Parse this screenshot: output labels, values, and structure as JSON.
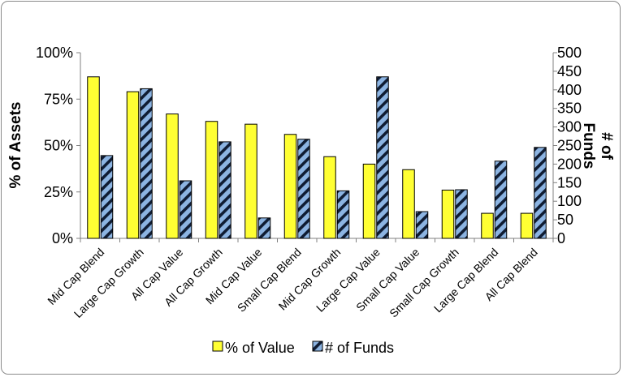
{
  "chart_data": {
    "type": "bar",
    "categories": [
      "Mid Cap Blend",
      "Large Cap Growth",
      "All Cap Value",
      "All Cap Growth",
      "Mid Cap Value",
      "Small Cap Blend",
      "Mid Cap Growth",
      "Large Cap Value",
      "Small Cap Value",
      "Small Cap Growth",
      "Large Cap Blend",
      "All Cap Blend"
    ],
    "series": [
      {
        "name": "% of Value",
        "axis": "left",
        "color": "#ffff33",
        "values": [
          87,
          79,
          67,
          63,
          61.5,
          56,
          44,
          40,
          37,
          26,
          13.5,
          13.5
        ]
      },
      {
        "name": "# of Funds",
        "axis": "right",
        "color": "#8cb4e2",
        "pattern": "diagonal-stripes",
        "values": [
          223,
          403,
          155,
          260,
          55,
          267,
          128,
          435,
          72,
          131,
          208,
          245
        ]
      }
    ],
    "y_left": {
      "label": "% of Assets",
      "ticks": [
        "0%",
        "25%",
        "50%",
        "75%",
        "100%"
      ],
      "ylim": [
        0,
        100
      ]
    },
    "y_right": {
      "label": "# of Funds",
      "ticks": [
        "0",
        "50",
        "100",
        "150",
        "200",
        "250",
        "300",
        "350",
        "400",
        "450",
        "500"
      ],
      "ylim": [
        0,
        500
      ]
    },
    "grid": false,
    "legend": "bottom"
  }
}
